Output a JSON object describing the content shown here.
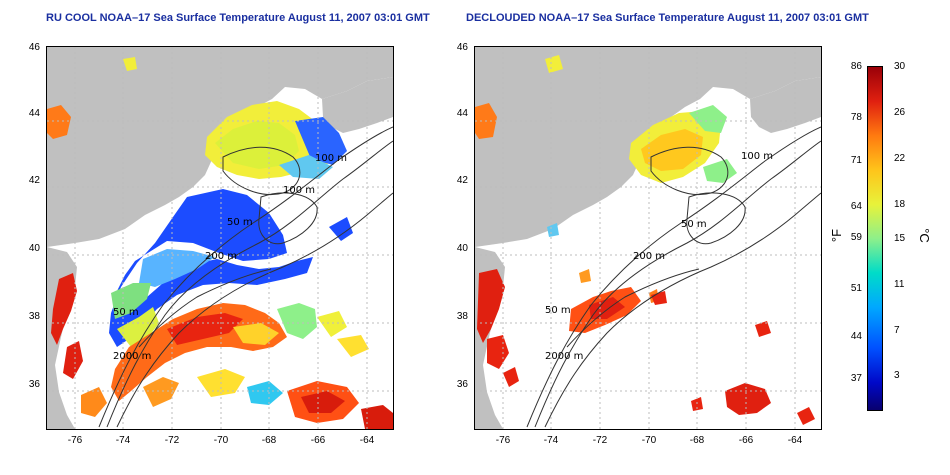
{
  "titles": {
    "left": "RU COOL NOAA–17 Sea Surface Temperature August 11, 2007 03:01 GMT",
    "right": "DECLOUDED NOAA–17 Sea Surface Temperature August 11, 2007 03:01 GMT"
  },
  "axes": {
    "lat": [
      "46",
      "44",
      "42",
      "40",
      "38",
      "36"
    ],
    "lon": [
      "-76",
      "-74",
      "-72",
      "-70",
      "-68",
      "-66",
      "-64"
    ]
  },
  "contours": {
    "left": [
      "100 m",
      "100 m",
      "50 m",
      "200 m",
      "50 m",
      "2000 m"
    ],
    "right": [
      "100 m",
      "50 m",
      "200 m",
      "50 m",
      "2000 m"
    ]
  },
  "colorbar": {
    "fahrenheit": [
      "86",
      "78",
      "71",
      "64",
      "59",
      "51",
      "44",
      "37"
    ],
    "celsius": [
      "30",
      "26",
      "22",
      "18",
      "15",
      "11",
      "7",
      "3"
    ],
    "unit_f": "°F",
    "unit_c": "°C"
  },
  "colors": {
    "title": "#1a2fa0",
    "land": "#c0c0c0",
    "water_missing": "#ffffff"
  }
}
